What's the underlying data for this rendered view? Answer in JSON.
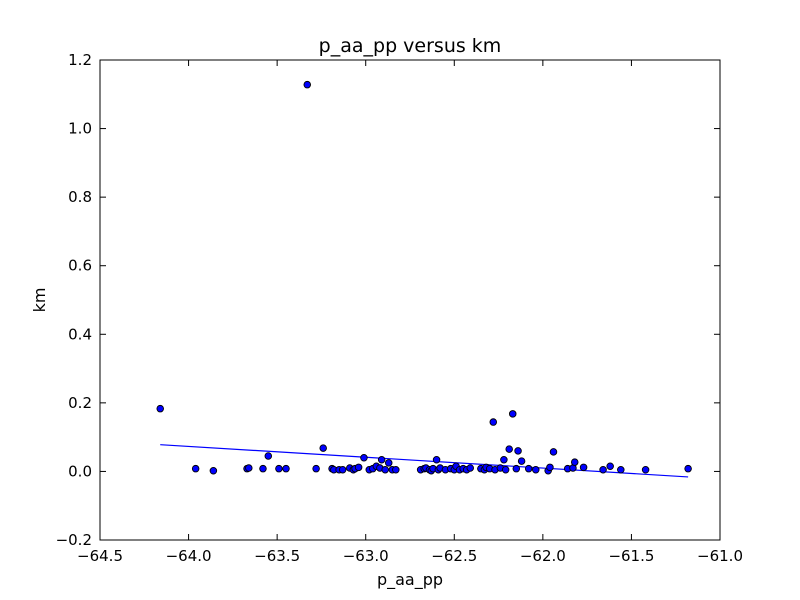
{
  "chart_data": {
    "type": "scatter",
    "title": "p_aa_pp versus km",
    "xlabel": "p_aa_pp",
    "ylabel": "km",
    "xlim": [
      -64.5,
      -61.0
    ],
    "ylim": [
      -0.2,
      1.2
    ],
    "xticks": [
      -64.5,
      -64.0,
      -63.5,
      -63.0,
      -62.5,
      -62.0,
      -61.5,
      -61.0
    ],
    "yticks": [
      -0.2,
      0.0,
      0.2,
      0.4,
      0.6,
      0.8,
      1.0,
      1.2
    ],
    "xtick_labels": [
      "−64.5",
      "−64.0",
      "−63.5",
      "−63.0",
      "−62.5",
      "−62.0",
      "−61.5",
      "−61.0"
    ],
    "ytick_labels": [
      "−0.2",
      "0.0",
      "0.2",
      "0.4",
      "0.6",
      "0.8",
      "1.0",
      "1.2"
    ],
    "grid": false,
    "colors": {
      "marker_fill": "#0000ff",
      "marker_edge": "#000000",
      "fit_line": "#0000ff"
    },
    "points": [
      [
        -64.16,
        0.183
      ],
      [
        -63.96,
        0.008
      ],
      [
        -63.86,
        0.002
      ],
      [
        -63.67,
        0.008
      ],
      [
        -63.66,
        0.01
      ],
      [
        -63.58,
        0.008
      ],
      [
        -63.55,
        0.045
      ],
      [
        -63.49,
        0.008
      ],
      [
        -63.45,
        0.008
      ],
      [
        -63.33,
        1.128
      ],
      [
        -63.28,
        0.008
      ],
      [
        -63.24,
        0.068
      ],
      [
        -63.19,
        0.008
      ],
      [
        -63.18,
        0.005
      ],
      [
        -63.15,
        0.005
      ],
      [
        -63.13,
        0.005
      ],
      [
        -63.09,
        0.01
      ],
      [
        -63.07,
        0.005
      ],
      [
        -63.06,
        0.008
      ],
      [
        -63.04,
        0.012
      ],
      [
        -63.01,
        0.04
      ],
      [
        -62.98,
        0.005
      ],
      [
        -62.96,
        0.008
      ],
      [
        -62.94,
        0.015
      ],
      [
        -62.92,
        0.01
      ],
      [
        -62.91,
        0.034
      ],
      [
        -62.89,
        0.005
      ],
      [
        -62.87,
        0.025
      ],
      [
        -62.85,
        0.005
      ],
      [
        -62.83,
        0.005
      ],
      [
        -62.69,
        0.005
      ],
      [
        -62.67,
        0.008
      ],
      [
        -62.66,
        0.01
      ],
      [
        -62.64,
        0.005
      ],
      [
        -62.63,
        0.002
      ],
      [
        -62.62,
        0.008
      ],
      [
        -62.6,
        0.034
      ],
      [
        -62.59,
        0.005
      ],
      [
        -62.58,
        0.01
      ],
      [
        -62.55,
        0.005
      ],
      [
        -62.52,
        0.008
      ],
      [
        -62.5,
        0.005
      ],
      [
        -62.49,
        0.015
      ],
      [
        -62.47,
        0.005
      ],
      [
        -62.45,
        0.008
      ],
      [
        -62.43,
        0.005
      ],
      [
        -62.41,
        0.01
      ],
      [
        -62.35,
        0.008
      ],
      [
        -62.33,
        0.005
      ],
      [
        -62.32,
        0.012
      ],
      [
        -62.3,
        0.008
      ],
      [
        -62.28,
        0.144
      ],
      [
        -62.27,
        0.005
      ],
      [
        -62.24,
        0.01
      ],
      [
        -62.22,
        0.034
      ],
      [
        -62.21,
        0.005
      ],
      [
        -62.19,
        0.065
      ],
      [
        -62.17,
        0.168
      ],
      [
        -62.15,
        0.008
      ],
      [
        -62.14,
        0.06
      ],
      [
        -62.12,
        0.03
      ],
      [
        -62.08,
        0.008
      ],
      [
        -62.04,
        0.005
      ],
      [
        -61.97,
        0.002
      ],
      [
        -61.96,
        0.012
      ],
      [
        -61.94,
        0.057
      ],
      [
        -61.86,
        0.008
      ],
      [
        -61.83,
        0.01
      ],
      [
        -61.82,
        0.027
      ],
      [
        -61.77,
        0.012
      ],
      [
        -61.66,
        0.005
      ],
      [
        -61.62,
        0.015
      ],
      [
        -61.56,
        0.005
      ],
      [
        -61.42,
        0.005
      ],
      [
        -61.18,
        0.008
      ]
    ],
    "fit_line": {
      "x": [
        -64.16,
        -61.18
      ],
      "y": [
        0.078,
        -0.016
      ]
    }
  }
}
